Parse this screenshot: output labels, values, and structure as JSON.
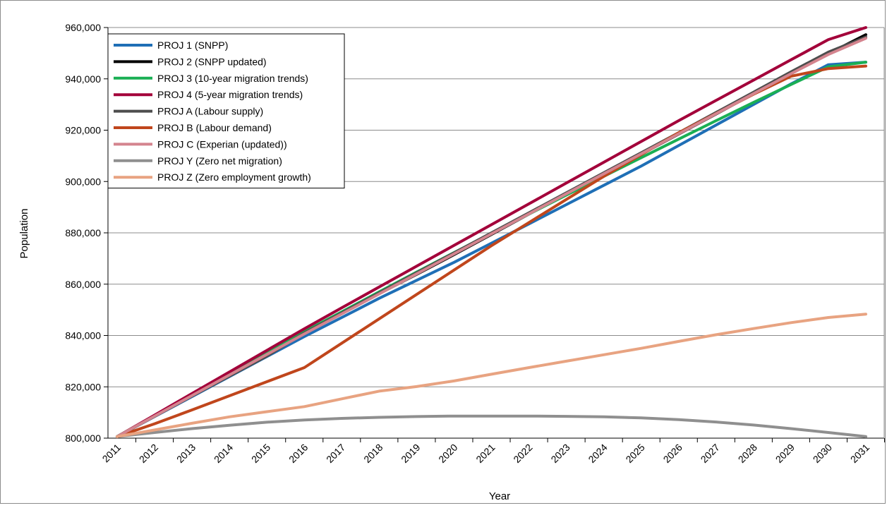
{
  "chart_data": {
    "type": "line",
    "title": "",
    "xlabel": "Year",
    "ylabel": "Population",
    "x": [
      2011,
      2012,
      2013,
      2014,
      2015,
      2016,
      2017,
      2018,
      2019,
      2020,
      2021,
      2022,
      2023,
      2024,
      2025,
      2026,
      2027,
      2028,
      2029,
      2030,
      2031
    ],
    "xtick_labels": [
      "2011",
      "2012",
      "2013",
      "2014",
      "2015",
      "2016",
      "2017",
      "2018",
      "2019",
      "2020",
      "2021",
      "2022",
      "2023",
      "2024",
      "2025",
      "2026",
      "2027",
      "2028",
      "2029",
      "2030",
      "2031"
    ],
    "ylim": [
      800000,
      960000
    ],
    "yticks": [
      800000,
      820000,
      840000,
      860000,
      880000,
      900000,
      920000,
      940000,
      960000
    ],
    "ytick_labels": [
      "800,000",
      "820,000",
      "840,000",
      "860,000",
      "880,000",
      "900,000",
      "920,000",
      "940,000",
      "960,000"
    ],
    "grid": "horizontal",
    "legend_position": "top-left",
    "series": [
      {
        "name": "PROJ 1 (SNPP)",
        "color": "#1f6fb6",
        "values": [
          800600,
          808400,
          816200,
          824000,
          831800,
          839600,
          847000,
          854500,
          861500,
          868500,
          876000,
          883500,
          891000,
          898500,
          906000,
          914000,
          922000,
          930000,
          938000,
          945500,
          946500
        ]
      },
      {
        "name": "PROJ 2 (SNPP updated)",
        "color": "#000000",
        "values": [
          800600,
          808700,
          816800,
          824900,
          833000,
          841000,
          848700,
          856300,
          863800,
          871500,
          879400,
          887300,
          895100,
          902900,
          910700,
          918500,
          926300,
          934200,
          942000,
          949800,
          957200
        ]
      },
      {
        "name": "PROJ 3 (10-year migration trends)",
        "color": "#1aaf54",
        "values": [
          800600,
          808800,
          817000,
          825200,
          833400,
          841500,
          849200,
          857000,
          864700,
          872300,
          879800,
          887300,
          894700,
          902000,
          909300,
          916500,
          923700,
          930800,
          937800,
          944700,
          946500
        ]
      },
      {
        "name": "PROJ 4 (5-year migration trends)",
        "color": "#a3003a",
        "values": [
          800600,
          809000,
          817400,
          825800,
          834200,
          842600,
          850800,
          858900,
          867000,
          875100,
          883200,
          891300,
          899400,
          907500,
          915600,
          923700,
          931600,
          939500,
          947400,
          955300,
          960000
        ]
      },
      {
        "name": "PROJ A (Labour supply)",
        "color": "#4d4d4d",
        "values": [
          800600,
          808500,
          816400,
          824200,
          832000,
          841000,
          848800,
          856600,
          864400,
          872200,
          880000,
          887800,
          895600,
          903400,
          911200,
          919000,
          926900,
          934800,
          942700,
          950400,
          956300
        ]
      },
      {
        "name": "PROJ B (Labour demand)",
        "color": "#c0461c",
        "values": [
          800600,
          805600,
          811000,
          816500,
          822000,
          827500,
          837000,
          846500,
          856000,
          865500,
          875000,
          884000,
          893000,
          902000,
          910500,
          919000,
          926500,
          934000,
          941000,
          944000,
          945000
        ]
      },
      {
        "name": "PROJ C (Experian (updated))",
        "color": "#d4848e",
        "values": [
          800600,
          808600,
          816600,
          824600,
          832600,
          840600,
          848400,
          856200,
          864000,
          871800,
          879600,
          887400,
          895200,
          903000,
          910800,
          918600,
          926400,
          934200,
          942000,
          949500,
          955800
        ]
      },
      {
        "name": "PROJ Y (Zero net migration)",
        "color": "#8f8f8f",
        "values": [
          800600,
          802200,
          803700,
          805000,
          806200,
          807100,
          807700,
          808100,
          808400,
          808600,
          808600,
          808600,
          808500,
          808300,
          807900,
          807200,
          806300,
          805100,
          803700,
          802200,
          800600
        ]
      },
      {
        "name": "PROJ Z (Zero employment growth)",
        "color": "#e8a381",
        "values": [
          800600,
          803200,
          805800,
          808300,
          810300,
          812300,
          815300,
          818300,
          820100,
          822300,
          824900,
          827500,
          830000,
          832500,
          835000,
          837700,
          840300,
          842700,
          845000,
          847000,
          848300
        ]
      }
    ]
  }
}
